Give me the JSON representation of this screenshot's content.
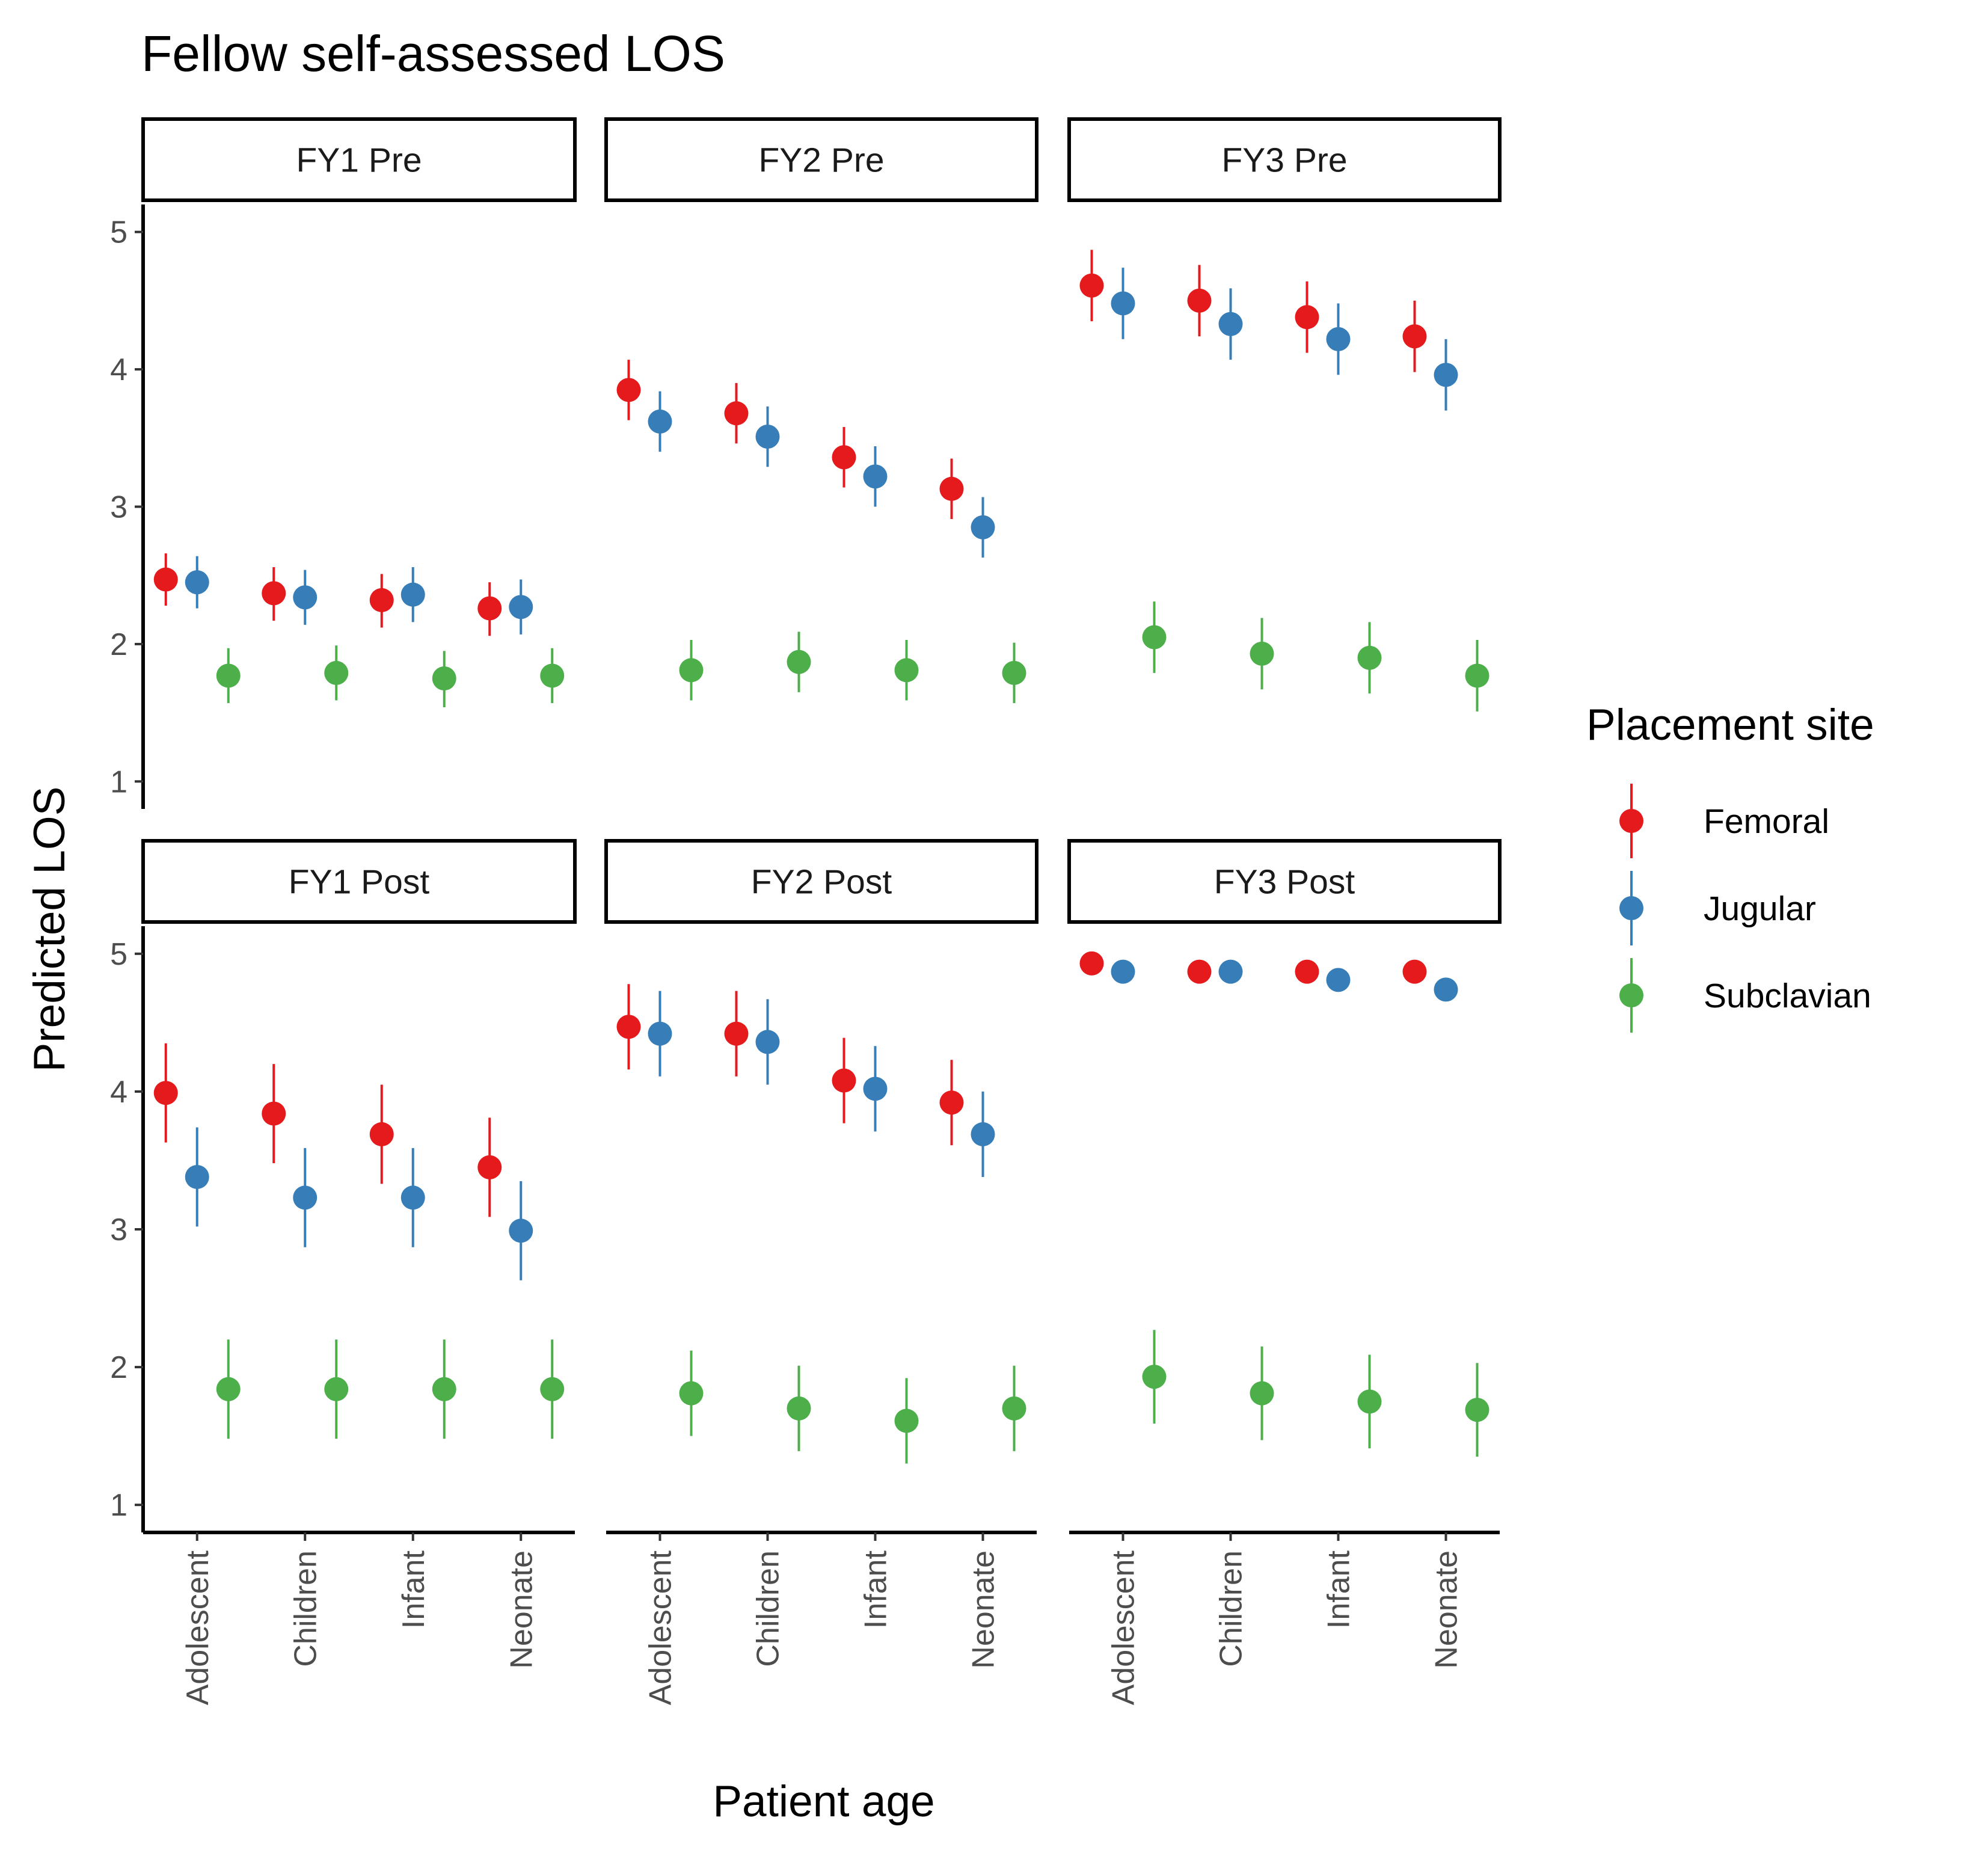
{
  "chart_data": {
    "type": "scatter",
    "title": "Fellow self-assessed LOS",
    "xlabel": "Patient age",
    "ylabel": "Predicted LOS",
    "categories": [
      "Adolescent",
      "Children",
      "Infant",
      "Neonate"
    ],
    "y_ticks": [
      "1",
      "2",
      "3",
      "4",
      "5"
    ],
    "ylim": [
      0.8,
      5.2
    ],
    "grid": false,
    "legend": {
      "title": "Placement site",
      "position": "right",
      "entries": [
        "Femoral",
        "Jugular",
        "Subclavian"
      ]
    },
    "colors": {
      "Femoral": "#E41A1C",
      "Jugular": "#377EB8",
      "Subclavian": "#4DAF4A"
    },
    "panels": [
      {
        "label": "FY1 Pre",
        "series": [
          {
            "name": "Femoral",
            "y": [
              2.47,
              2.37,
              2.32,
              2.26
            ],
            "lo": [
              2.28,
              2.17,
              2.12,
              2.06
            ],
            "hi": [
              2.66,
              2.56,
              2.51,
              2.45
            ]
          },
          {
            "name": "Jugular",
            "y": [
              2.45,
              2.34,
              2.36,
              2.27
            ],
            "lo": [
              2.26,
              2.14,
              2.16,
              2.07
            ],
            "hi": [
              2.64,
              2.54,
              2.56,
              2.47
            ]
          },
          {
            "name": "Subclavian",
            "y": [
              1.77,
              1.79,
              1.75,
              1.77
            ],
            "lo": [
              1.57,
              1.59,
              1.54,
              1.57
            ],
            "hi": [
              1.97,
              1.99,
              1.95,
              1.97
            ]
          }
        ]
      },
      {
        "label": "FY2 Pre",
        "series": [
          {
            "name": "Femoral",
            "y": [
              3.85,
              3.68,
              3.36,
              3.13
            ],
            "lo": [
              3.63,
              3.46,
              3.14,
              2.91
            ],
            "hi": [
              4.07,
              3.9,
              3.58,
              3.35
            ]
          },
          {
            "name": "Jugular",
            "y": [
              3.62,
              3.51,
              3.22,
              2.85
            ],
            "lo": [
              3.4,
              3.29,
              3.0,
              2.63
            ],
            "hi": [
              3.84,
              3.73,
              3.44,
              3.07
            ]
          },
          {
            "name": "Subclavian",
            "y": [
              1.81,
              1.87,
              1.81,
              1.79
            ],
            "lo": [
              1.59,
              1.65,
              1.59,
              1.57
            ],
            "hi": [
              2.03,
              2.09,
              2.03,
              2.01
            ]
          }
        ]
      },
      {
        "label": "FY3 Pre",
        "series": [
          {
            "name": "Femoral",
            "y": [
              4.61,
              4.5,
              4.38,
              4.24
            ],
            "lo": [
              4.35,
              4.24,
              4.12,
              3.98
            ],
            "hi": [
              4.87,
              4.76,
              4.64,
              4.5
            ]
          },
          {
            "name": "Jugular",
            "y": [
              4.48,
              4.33,
              4.22,
              3.96
            ],
            "lo": [
              4.22,
              4.07,
              3.96,
              3.7
            ],
            "hi": [
              4.74,
              4.59,
              4.48,
              4.22
            ]
          },
          {
            "name": "Subclavian",
            "y": [
              2.05,
              1.93,
              1.9,
              1.77
            ],
            "lo": [
              1.79,
              1.67,
              1.64,
              1.51
            ],
            "hi": [
              2.31,
              2.19,
              2.16,
              2.03
            ]
          }
        ]
      },
      {
        "label": "FY1 Post",
        "series": [
          {
            "name": "Femoral",
            "y": [
              3.99,
              3.84,
              3.69,
              3.45
            ],
            "lo": [
              3.63,
              3.48,
              3.33,
              3.09
            ],
            "hi": [
              4.35,
              4.2,
              4.05,
              3.81
            ]
          },
          {
            "name": "Jugular",
            "y": [
              3.38,
              3.23,
              3.23,
              2.99
            ],
            "lo": [
              3.02,
              2.87,
              2.87,
              2.63
            ],
            "hi": [
              3.74,
              3.59,
              3.59,
              3.35
            ]
          },
          {
            "name": "Subclavian",
            "y": [
              1.84,
              1.84,
              1.84,
              1.84
            ],
            "lo": [
              1.48,
              1.48,
              1.48,
              1.48
            ],
            "hi": [
              2.2,
              2.2,
              2.2,
              2.2
            ]
          }
        ]
      },
      {
        "label": "FY2 Post",
        "series": [
          {
            "name": "Femoral",
            "y": [
              4.47,
              4.42,
              4.08,
              3.92
            ],
            "lo": [
              4.16,
              4.11,
              3.77,
              3.61
            ],
            "hi": [
              4.78,
              4.73,
              4.39,
              4.23
            ]
          },
          {
            "name": "Jugular",
            "y": [
              4.42,
              4.36,
              4.02,
              3.69
            ],
            "lo": [
              4.11,
              4.05,
              3.71,
              3.38
            ],
            "hi": [
              4.73,
              4.67,
              4.33,
              4.0
            ]
          },
          {
            "name": "Subclavian",
            "y": [
              1.81,
              1.7,
              1.61,
              1.7
            ],
            "lo": [
              1.5,
              1.39,
              1.3,
              1.39
            ],
            "hi": [
              2.12,
              2.01,
              1.92,
              2.01
            ]
          }
        ]
      },
      {
        "label": "FY3 Post",
        "series": [
          {
            "name": "Femoral",
            "y": [
              4.93,
              4.87,
              4.87,
              4.87
            ],
            "lo": [
              4.93,
              4.87,
              4.87,
              4.87
            ],
            "hi": [
              4.93,
              4.87,
              4.87,
              4.87
            ]
          },
          {
            "name": "Jugular",
            "y": [
              4.87,
              4.87,
              4.81,
              4.74
            ],
            "lo": [
              4.87,
              4.87,
              4.81,
              4.74
            ],
            "hi": [
              4.87,
              4.87,
              4.81,
              4.74
            ]
          },
          {
            "name": "Subclavian",
            "y": [
              1.93,
              1.81,
              1.75,
              1.69
            ],
            "lo": [
              1.59,
              1.47,
              1.41,
              1.35
            ],
            "hi": [
              2.27,
              2.15,
              2.09,
              2.03
            ]
          }
        ]
      }
    ]
  }
}
